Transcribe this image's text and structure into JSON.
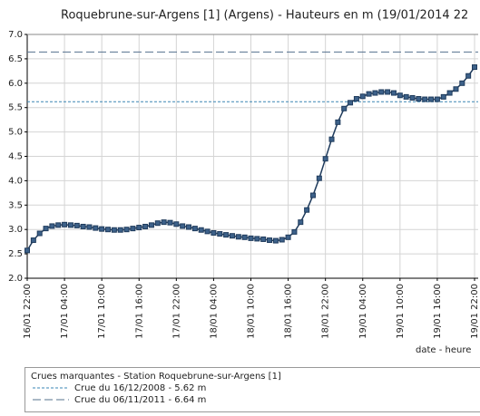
{
  "chart_data": {
    "type": "line",
    "title": "Roquebrune-sur-Argens [1] (Argens) - Hauteurs en m (19/01/2014 22",
    "x_label": "date  -  heure",
    "categories": [
      "16/01 22:00",
      null,
      null,
      null,
      null,
      null,
      "17/01 04:00",
      null,
      null,
      null,
      null,
      null,
      "17/01 10:00",
      null,
      null,
      null,
      null,
      null,
      "17/01 16:00",
      null,
      null,
      null,
      null,
      null,
      "17/01 22:00",
      null,
      null,
      null,
      null,
      null,
      "18/01 04:00",
      null,
      null,
      null,
      null,
      null,
      "18/01 10:00",
      null,
      null,
      null,
      null,
      null,
      "18/01 16:00",
      null,
      null,
      null,
      null,
      null,
      "18/01 22:00",
      null,
      null,
      null,
      null,
      null,
      "19/01 04:00",
      null,
      null,
      null,
      null,
      null,
      "19/01 10:00",
      null,
      null,
      null,
      null,
      null,
      "19/01 16:00",
      null,
      null,
      null,
      null,
      null,
      "19/01 22:00"
    ],
    "series": [
      {
        "name": "Hauteur",
        "color": "#1f3b5c",
        "values": [
          2.57,
          2.78,
          2.92,
          3.02,
          3.07,
          3.09,
          3.1,
          3.09,
          3.08,
          3.06,
          3.05,
          3.03,
          3.01,
          3.0,
          2.99,
          2.99,
          3.0,
          3.02,
          3.04,
          3.06,
          3.09,
          3.13,
          3.15,
          3.14,
          3.11,
          3.07,
          3.05,
          3.02,
          2.99,
          2.96,
          2.93,
          2.91,
          2.89,
          2.87,
          2.85,
          2.84,
          2.82,
          2.81,
          2.8,
          2.78,
          2.77,
          2.79,
          2.84,
          2.95,
          3.15,
          3.4,
          3.7,
          4.05,
          4.45,
          4.85,
          5.2,
          5.48,
          5.6,
          5.68,
          5.73,
          5.78,
          5.8,
          5.82,
          5.82,
          5.8,
          5.75,
          5.72,
          5.7,
          5.68,
          5.67,
          5.67,
          5.67,
          5.72,
          5.8,
          5.88,
          6.0,
          6.15,
          6.33
        ]
      }
    ],
    "ylim": [
      2.0,
      7.0
    ],
    "yticks": [
      {
        "value": 2.0,
        "label": "2.0"
      },
      {
        "value": 2.5,
        "label": "2.5"
      },
      {
        "value": 3.0,
        "label": "3.0"
      },
      {
        "value": 3.5,
        "label": "3.5"
      },
      {
        "value": 4.0,
        "label": "4.0"
      },
      {
        "value": 4.5,
        "label": "4.5"
      },
      {
        "value": 5.0,
        "label": "5.0"
      },
      {
        "value": 5.5,
        "label": "5.5"
      },
      {
        "value": 6.0,
        "label": "6.0"
      },
      {
        "value": 6.5,
        "label": "6.5"
      },
      {
        "value": 7.0,
        "label": "7.0"
      }
    ],
    "grid": true,
    "legend_title": "Crues marquantes - Station Roquebrune-sur-Argens [1]",
    "thresholds": [
      {
        "label": "Crue du 16/12/2008 - 5.62 m",
        "value": 5.62,
        "style": "dotted",
        "color": "#3a86b4"
      },
      {
        "label": "Crue du 06/11/2011 - 6.64 m",
        "value": 6.64,
        "style": "dashed",
        "color": "#56708e"
      }
    ]
  }
}
